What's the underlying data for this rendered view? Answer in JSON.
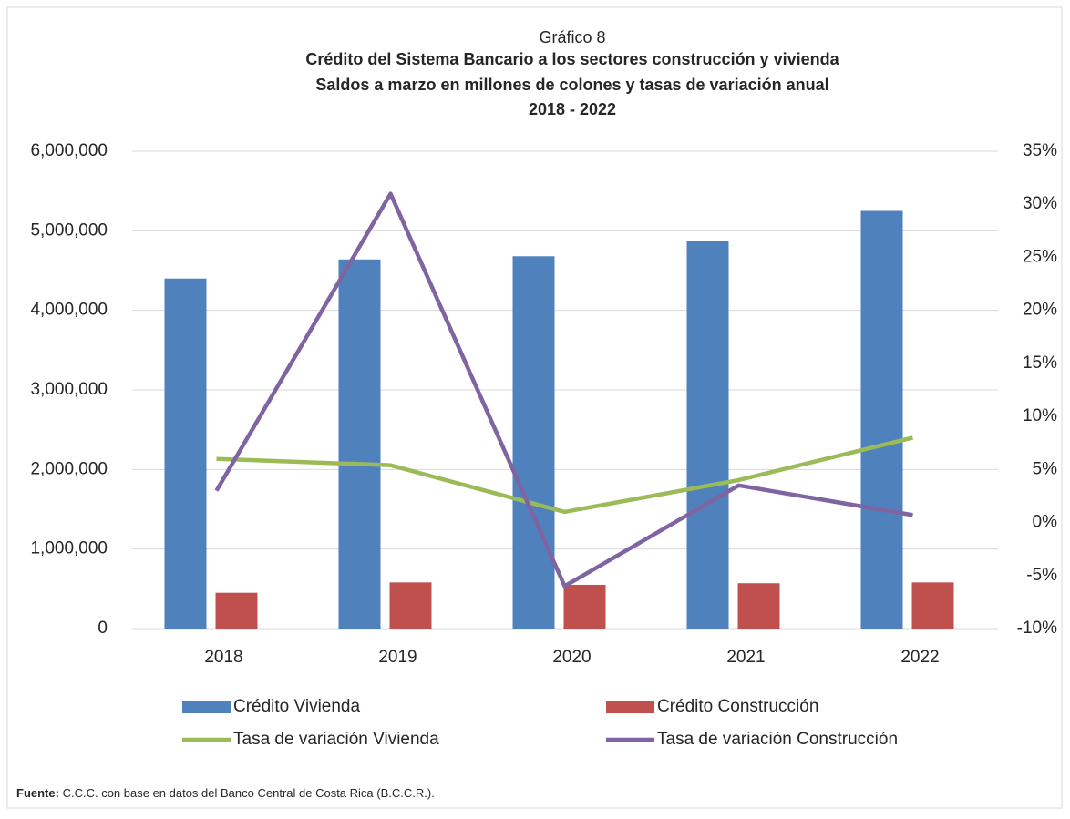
{
  "chart_data": {
    "type": "bar",
    "title": "Gráfico 8",
    "subtitle": [
      "Crédito del Sistema Bancario a los sectores construcción y vivienda",
      "Saldos a marzo en millones de colones y tasas de variación anual",
      "2018 - 2022"
    ],
    "categories": [
      "2018",
      "2019",
      "2020",
      "2021",
      "2022"
    ],
    "series": [
      {
        "name": "Crédito Vivienda",
        "type": "bar",
        "color": "#4f81bd",
        "values": [
          4400000,
          4640000,
          4680000,
          4870000,
          5250000
        ]
      },
      {
        "name": "Crédito Construcción",
        "type": "bar",
        "color": "#c0504d",
        "values": [
          450000,
          580000,
          550000,
          570000,
          580000
        ]
      },
      {
        "name": "Tasa de variación Vivienda",
        "type": "line",
        "axis": "y2",
        "color": "#9bbb59",
        "values": [
          6.0,
          5.4,
          1.0,
          4.0,
          8.0
        ]
      },
      {
        "name": "Tasa de variación Construcción",
        "type": "line",
        "axis": "y2",
        "color": "#8064a2",
        "values": [
          3.0,
          31.0,
          -6.0,
          3.5,
          0.7
        ]
      }
    ],
    "ylim": [
      0,
      6000000
    ],
    "yticks": [
      {
        "value": 0,
        "label": "0"
      },
      {
        "value": 1000000,
        "label": "1,000,000"
      },
      {
        "value": 2000000,
        "label": "2,000,000"
      },
      {
        "value": 3000000,
        "label": "3,000,000"
      },
      {
        "value": 4000000,
        "label": "4,000,000"
      },
      {
        "value": 5000000,
        "label": "5,000,000"
      },
      {
        "value": 6000000,
        "label": "6,000,000"
      }
    ],
    "y2lim": [
      -10,
      35
    ],
    "y2ticks": [
      {
        "value": -10,
        "label": "-10%"
      },
      {
        "value": -5,
        "label": "-5%"
      },
      {
        "value": 0,
        "label": "0%"
      },
      {
        "value": 5,
        "label": "5%"
      },
      {
        "value": 10,
        "label": "10%"
      },
      {
        "value": 15,
        "label": "15%"
      },
      {
        "value": 20,
        "label": "20%"
      },
      {
        "value": 25,
        "label": "25%"
      },
      {
        "value": 30,
        "label": "30%"
      },
      {
        "value": 35,
        "label": "35%"
      }
    ],
    "grid": true,
    "legend": "bottom",
    "source_label": "Fuente:",
    "source": "C.C.C. con base en datos del Banco Central de Costa Rica (B.C.C.R.)."
  }
}
